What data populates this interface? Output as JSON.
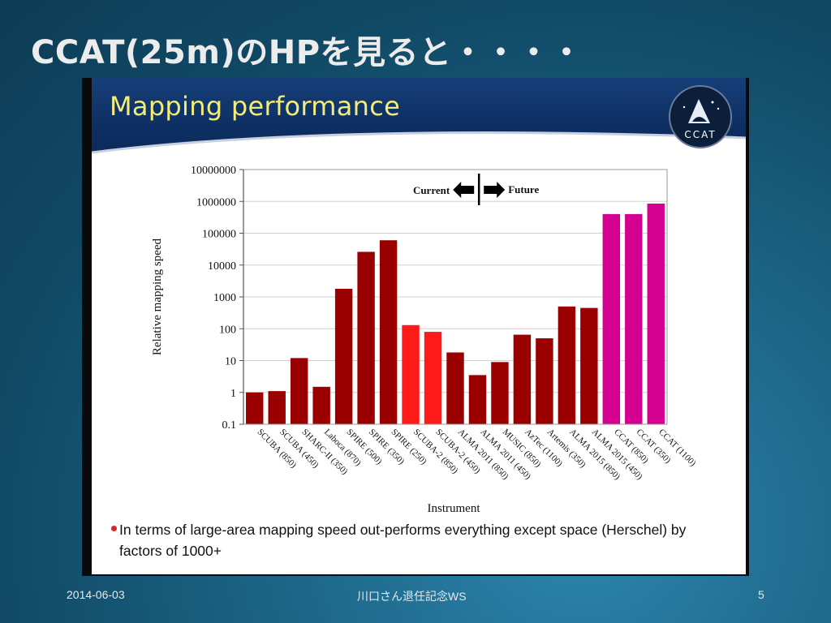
{
  "slide": {
    "title": "CCAT(25m)のHPを見ると・・・・",
    "footer_date": "2014-06-03",
    "footer_event": "川口さん退任記念WS",
    "page_number": "5"
  },
  "figure": {
    "header_title": "Mapping performance",
    "logo_text": "CCAT",
    "bullet_text": "In terms of large-area mapping speed out-performs everything except space (Herschel) by factors of 1000+"
  },
  "chart_data": {
    "type": "bar",
    "xlabel": "Instrument",
    "ylabel": "Relative mapping speed",
    "y_scale": "log",
    "ylim": [
      0.1,
      10000000
    ],
    "y_ticks": [
      {
        "value": 0.1,
        "label": "0.1"
      },
      {
        "value": 1,
        "label": "1"
      },
      {
        "value": 10,
        "label": "10"
      },
      {
        "value": 100,
        "label": "100"
      },
      {
        "value": 1000,
        "label": "1000"
      },
      {
        "value": 10000,
        "label": "10000"
      },
      {
        "value": 100000,
        "label": "100000"
      },
      {
        "value": 1000000,
        "label": "1000000"
      },
      {
        "value": 10000000,
        "label": "10000000"
      }
    ],
    "grid": true,
    "categories": [
      "SCUBA (850)",
      "SCUBA (450)",
      "SHARC-II (350)",
      "Laboca (870)",
      "SPIRE (500)",
      "SPIRE (350)",
      "SPIRE (250)",
      "SCUBA-2 (850)",
      "SCUBA-2 (450)",
      "ALMA 2011 (850)",
      "ALMA 2011 (450)",
      "MUSIC (850)",
      "AzTec (1100)",
      "Artemis (350)",
      "ALMA 2015 (850)",
      "ALMA 2015 (450)",
      "CCAT (850)",
      "CCAT (350)",
      "CCAT (1100)"
    ],
    "values": [
      1,
      1.1,
      12,
      1.5,
      1800,
      26000,
      60000,
      130,
      80,
      18,
      3.5,
      9,
      65,
      50,
      500,
      450,
      400000,
      400000,
      850000
    ],
    "bar_colors": [
      "#9a0000",
      "#9a0000",
      "#9a0000",
      "#9a0000",
      "#9a0000",
      "#9a0000",
      "#9a0000",
      "#ff1a1a",
      "#ff1a1a",
      "#9a0000",
      "#9a0000",
      "#9a0000",
      "#9a0000",
      "#9a0000",
      "#9a0000",
      "#9a0000",
      "#d4008f",
      "#d4008f",
      "#d4008f"
    ],
    "annotation": {
      "left": "Current",
      "right": "Future",
      "divider_after_index": 10
    }
  }
}
